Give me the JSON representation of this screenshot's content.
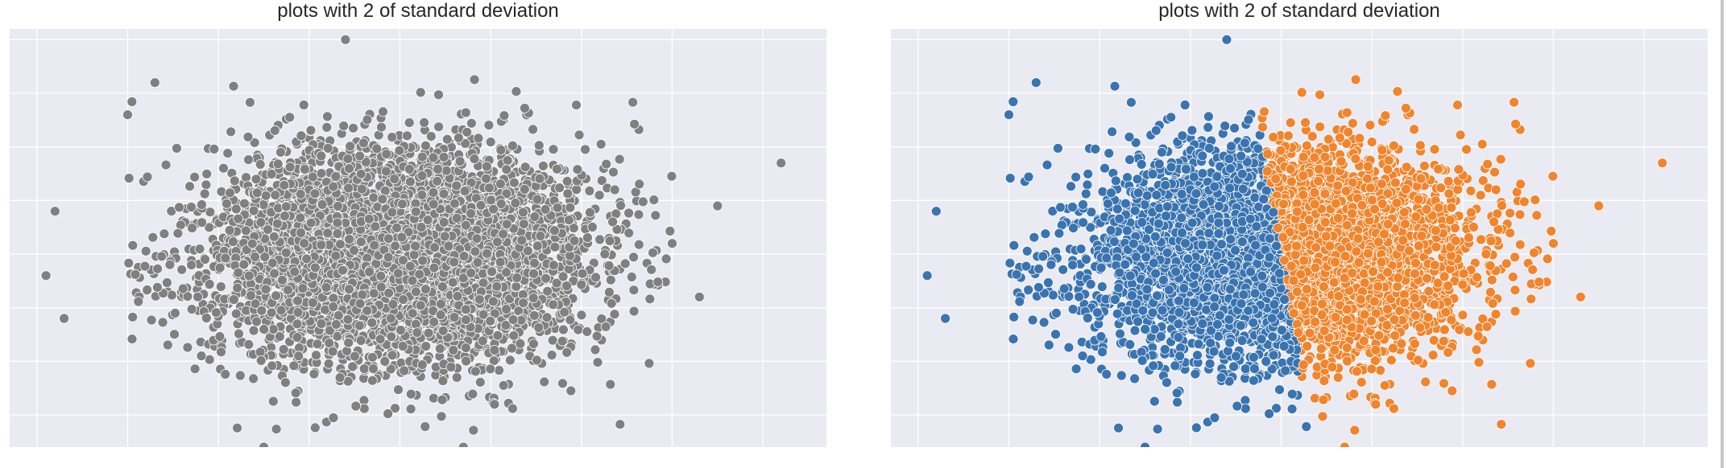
{
  "chart_data": [
    {
      "type": "scatter",
      "title": "plots with 2 of standard deviation",
      "xlabel": "",
      "ylabel": "",
      "xlim": [
        -4.3,
        4.7
      ],
      "ylim": [
        -3.6,
        4.2
      ],
      "grid": true,
      "legend": "none",
      "n_points": 5000,
      "distribution": {
        "x_mean": 0,
        "x_std": 1,
        "y_mean": 0,
        "y_std": 1
      },
      "colors": {
        "points": "#808080",
        "edge": "#ffffff",
        "background": "#eaeaf2",
        "grid": "#ffffff"
      },
      "outliers": [
        {
          "x": 4.2,
          "y": 1.7
        },
        {
          "x": -3.8,
          "y": 0.8
        },
        {
          "x": -3.9,
          "y": -0.4
        },
        {
          "x": -3.7,
          "y": -1.2
        },
        {
          "x": -2.7,
          "y": 3.2
        },
        {
          "x": -3.0,
          "y": 2.6
        },
        {
          "x": -0.6,
          "y": 4.0
        },
        {
          "x": -1.5,
          "y": -3.6
        },
        {
          "x": 0.7,
          "y": -3.6
        },
        {
          "x": 3.0,
          "y": 0.2
        },
        {
          "x": 3.5,
          "y": 0.9
        },
        {
          "x": 3.3,
          "y": -0.8
        }
      ]
    },
    {
      "type": "scatter",
      "title": "plots with 2 of standard deviation",
      "xlabel": "",
      "ylabel": "",
      "xlim": [
        -4.3,
        4.7
      ],
      "ylim": [
        -3.6,
        4.2
      ],
      "grid": true,
      "legend": "none",
      "n_points": 5000,
      "distribution": {
        "x_mean": 0,
        "x_std": 1,
        "y_mean": 0,
        "y_std": 1
      },
      "split_boundary": "x + 0.1*y = 0",
      "series": [
        {
          "side": "left",
          "color": "#3a74b0"
        },
        {
          "side": "right",
          "color": "#f0852d"
        }
      ],
      "colors": {
        "edge": "#ffffff",
        "background": "#eaeaf2",
        "grid": "#ffffff"
      },
      "outliers": [
        {
          "x": 4.2,
          "y": 1.7
        },
        {
          "x": -3.8,
          "y": 0.8
        },
        {
          "x": -3.9,
          "y": -0.4
        },
        {
          "x": -3.7,
          "y": -1.2
        },
        {
          "x": -2.7,
          "y": 3.2
        },
        {
          "x": -3.0,
          "y": 2.6
        },
        {
          "x": -0.6,
          "y": 4.0
        },
        {
          "x": -1.5,
          "y": -3.6
        },
        {
          "x": 0.7,
          "y": -3.6
        },
        {
          "x": 3.0,
          "y": 0.2
        },
        {
          "x": 3.5,
          "y": 0.9
        },
        {
          "x": 3.3,
          "y": -0.8
        }
      ]
    }
  ]
}
